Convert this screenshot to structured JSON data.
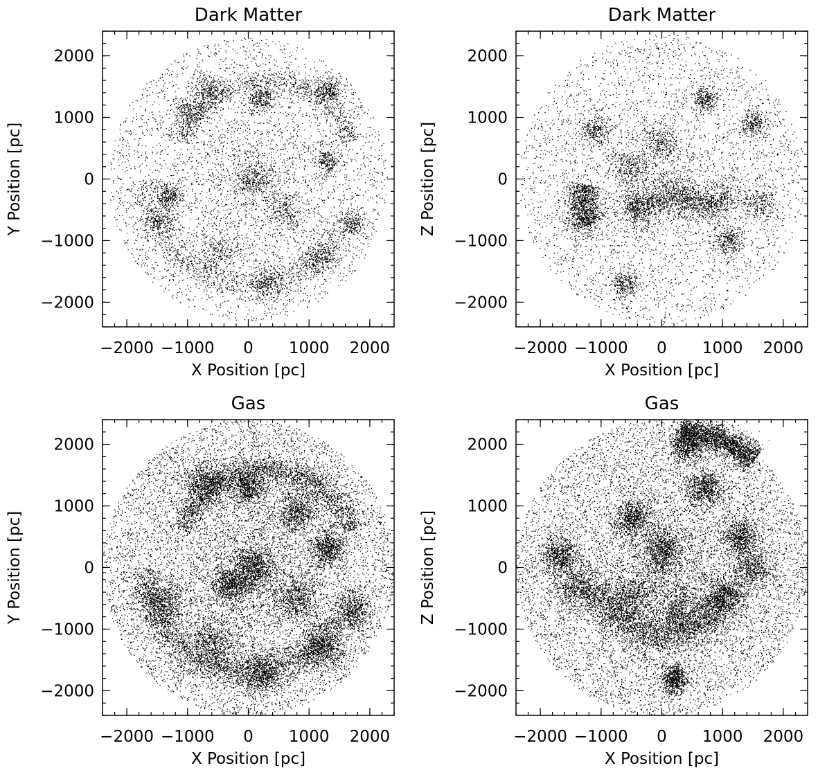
{
  "chart_data": [
    {
      "id": "panel-1",
      "type": "scatter",
      "title": "Dark Matter",
      "xlabel": "X Position [pc]",
      "ylabel": "Y Position [pc]",
      "xlim": [
        -2400,
        2400
      ],
      "ylim": [
        -2400,
        2400
      ],
      "xticks": [
        -2000,
        -1000,
        0,
        1000,
        2000
      ],
      "yticks": [
        -2000,
        -1000,
        0,
        1000,
        2000
      ],
      "xtick_labels": [
        "−2000",
        "−1000",
        "0",
        "1000",
        "2000"
      ],
      "ytick_labels": [
        "−2000",
        "−1000",
        "0",
        "1000",
        "2000"
      ],
      "minor_tick_step": 200,
      "marker_color": "#000000",
      "series": [
        {
          "point_count": 9000,
          "distribution": {
            "background_disk_radius": 2300,
            "arcs": [
              {
                "center": [
                  300,
                  100
                ],
                "radius": 1500,
                "angle_range_deg": [
                  20,
                  160
                ],
                "width": 90
              },
              {
                "center": [
                  0,
                  0
                ],
                "radius": 1700,
                "angle_range_deg": [
                  180,
                  330
                ],
                "width": 120
              }
            ],
            "clumps": [
              {
                "x": -650,
                "y": 1450,
                "r": 130
              },
              {
                "x": -1000,
                "y": 1100,
                "r": 120
              },
              {
                "x": 200,
                "y": 1300,
                "r": 110
              },
              {
                "x": 1300,
                "y": 1450,
                "r": 110
              },
              {
                "x": -1450,
                "y": -700,
                "r": 140
              },
              {
                "x": -500,
                "y": -1200,
                "r": 160
              },
              {
                "x": 100,
                "y": 0,
                "r": 150
              },
              {
                "x": 1200,
                "y": -1300,
                "r": 140
              },
              {
                "x": 1700,
                "y": -700,
                "r": 120
              },
              {
                "x": 600,
                "y": -500,
                "r": 160
              },
              {
                "x": 300,
                "y": -1700,
                "r": 150
              },
              {
                "x": -1300,
                "y": -300,
                "r": 110
              },
              {
                "x": 1300,
                "y": 300,
                "r": 110
              }
            ]
          }
        }
      ]
    },
    {
      "id": "panel-2",
      "type": "scatter",
      "title": "Dark Matter",
      "xlabel": "X Position [pc]",
      "ylabel": "Z Position [pc]",
      "xlim": [
        -2400,
        2400
      ],
      "ylim": [
        -2400,
        2400
      ],
      "xticks": [
        -2000,
        -1000,
        0,
        1000,
        2000
      ],
      "yticks": [
        -2000,
        -1000,
        0,
        1000,
        2000
      ],
      "xtick_labels": [
        "−2000",
        "−1000",
        "0",
        "1000",
        "2000"
      ],
      "ytick_labels": [
        "−2000",
        "−1000",
        "0",
        "1000",
        "2000"
      ],
      "minor_tick_step": 200,
      "marker_color": "#000000",
      "series": [
        {
          "point_count": 9000,
          "distribution": {
            "background_disk_radius": 2350,
            "arcs": [
              {
                "center": [
                  0,
                  -300
                ],
                "radius": 1300,
                "angle_range_deg": [
                  170,
                  200
                ],
                "width": 140
              },
              {
                "center": [
                  200,
                  -1800
                ],
                "radius": 1500,
                "angle_range_deg": [
                  60,
                  120
                ],
                "width": 120
              }
            ],
            "clumps": [
              {
                "x": -1300,
                "y": -700,
                "r": 180
              },
              {
                "x": -400,
                "y": -500,
                "r": 160
              },
              {
                "x": 300,
                "y": -300,
                "r": 200
              },
              {
                "x": 1000,
                "y": -300,
                "r": 170
              },
              {
                "x": 1600,
                "y": -400,
                "r": 150
              },
              {
                "x": -1100,
                "y": 800,
                "r": 120
              },
              {
                "x": -500,
                "y": 200,
                "r": 150
              },
              {
                "x": 0,
                "y": 600,
                "r": 140
              },
              {
                "x": 1100,
                "y": -1000,
                "r": 120
              },
              {
                "x": -600,
                "y": -1700,
                "r": 120
              },
              {
                "x": 1500,
                "y": 900,
                "r": 110
              },
              {
                "x": 700,
                "y": 1300,
                "r": 110
              }
            ]
          }
        }
      ]
    },
    {
      "id": "panel-3",
      "type": "scatter",
      "title": "Gas",
      "xlabel": "X Position [pc]",
      "ylabel": "Y Position [pc]",
      "xlim": [
        -2400,
        2400
      ],
      "ylim": [
        -2400,
        2400
      ],
      "xticks": [
        -2000,
        -1000,
        0,
        1000,
        2000
      ],
      "yticks": [
        -2000,
        -1000,
        0,
        1000,
        2000
      ],
      "xtick_labels": [
        "−2000",
        "−1000",
        "0",
        "1000",
        "2000"
      ],
      "ytick_labels": [
        "−2000",
        "−1000",
        "0",
        "1000",
        "2000"
      ],
      "minor_tick_step": 200,
      "marker_color": "#000000",
      "series": [
        {
          "point_count": 22000,
          "distribution": {
            "background_disk_radius": 2400,
            "arcs": [
              {
                "center": [
                  300,
                  100
                ],
                "radius": 1500,
                "angle_range_deg": [
                  20,
                  160
                ],
                "width": 110
              },
              {
                "center": [
                  0,
                  0
                ],
                "radius": 1700,
                "angle_range_deg": [
                  180,
                  330
                ],
                "width": 140
              }
            ],
            "clumps": [
              {
                "x": -700,
                "y": 1400,
                "r": 170
              },
              {
                "x": 0,
                "y": 1300,
                "r": 150
              },
              {
                "x": 800,
                "y": 900,
                "r": 170
              },
              {
                "x": -1400,
                "y": -600,
                "r": 180
              },
              {
                "x": -600,
                "y": -1200,
                "r": 210
              },
              {
                "x": 100,
                "y": 0,
                "r": 170
              },
              {
                "x": 800,
                "y": -500,
                "r": 190
              },
              {
                "x": 1200,
                "y": -1300,
                "r": 170
              },
              {
                "x": 1700,
                "y": -700,
                "r": 150
              },
              {
                "x": 200,
                "y": -1700,
                "r": 170
              },
              {
                "x": -300,
                "y": -300,
                "r": 150
              },
              {
                "x": 1300,
                "y": 300,
                "r": 140
              }
            ]
          }
        }
      ]
    },
    {
      "id": "panel-4",
      "type": "scatter",
      "title": "Gas",
      "xlabel": "X Position [pc]",
      "ylabel": "Z Position [pc]",
      "xlim": [
        -2400,
        2400
      ],
      "ylim": [
        -2400,
        2400
      ],
      "xticks": [
        -2000,
        -1000,
        0,
        1000,
        2000
      ],
      "yticks": [
        -2000,
        -1000,
        0,
        1000,
        2000
      ],
      "xtick_labels": [
        "−2000",
        "−1000",
        "0",
        "1000",
        "2000"
      ],
      "ytick_labels": [
        "−2000",
        "−1000",
        "0",
        "1000",
        "2000"
      ],
      "minor_tick_step": 200,
      "marker_color": "#000000",
      "series": [
        {
          "point_count": 22000,
          "distribution": {
            "background_disk_radius": 2400,
            "arcs": [
              {
                "center": [
                  0,
                  100
                ],
                "radius": 1200,
                "angle_range_deg": [
                  200,
                  340
                ],
                "width": 150
              },
              {
                "center": [
                  300,
                  300
                ],
                "radius": 1900,
                "angle_range_deg": [
                  50,
                  90
                ],
                "width": 120
              }
            ],
            "clumps": [
              {
                "x": -1400,
                "y": -300,
                "r": 200
              },
              {
                "x": -500,
                "y": -500,
                "r": 200
              },
              {
                "x": 300,
                "y": -700,
                "r": 200
              },
              {
                "x": 1000,
                "y": -500,
                "r": 190
              },
              {
                "x": 1500,
                "y": 0,
                "r": 170
              },
              {
                "x": 1300,
                "y": 500,
                "r": 150
              },
              {
                "x": 700,
                "y": 1300,
                "r": 150
              },
              {
                "x": -500,
                "y": 800,
                "r": 150
              },
              {
                "x": -1700,
                "y": 200,
                "r": 150
              },
              {
                "x": 200,
                "y": -1800,
                "r": 120
              },
              {
                "x": 400,
                "y": 2000,
                "r": 150
              },
              {
                "x": 0,
                "y": 300,
                "r": 160
              }
            ]
          }
        }
      ]
    }
  ]
}
